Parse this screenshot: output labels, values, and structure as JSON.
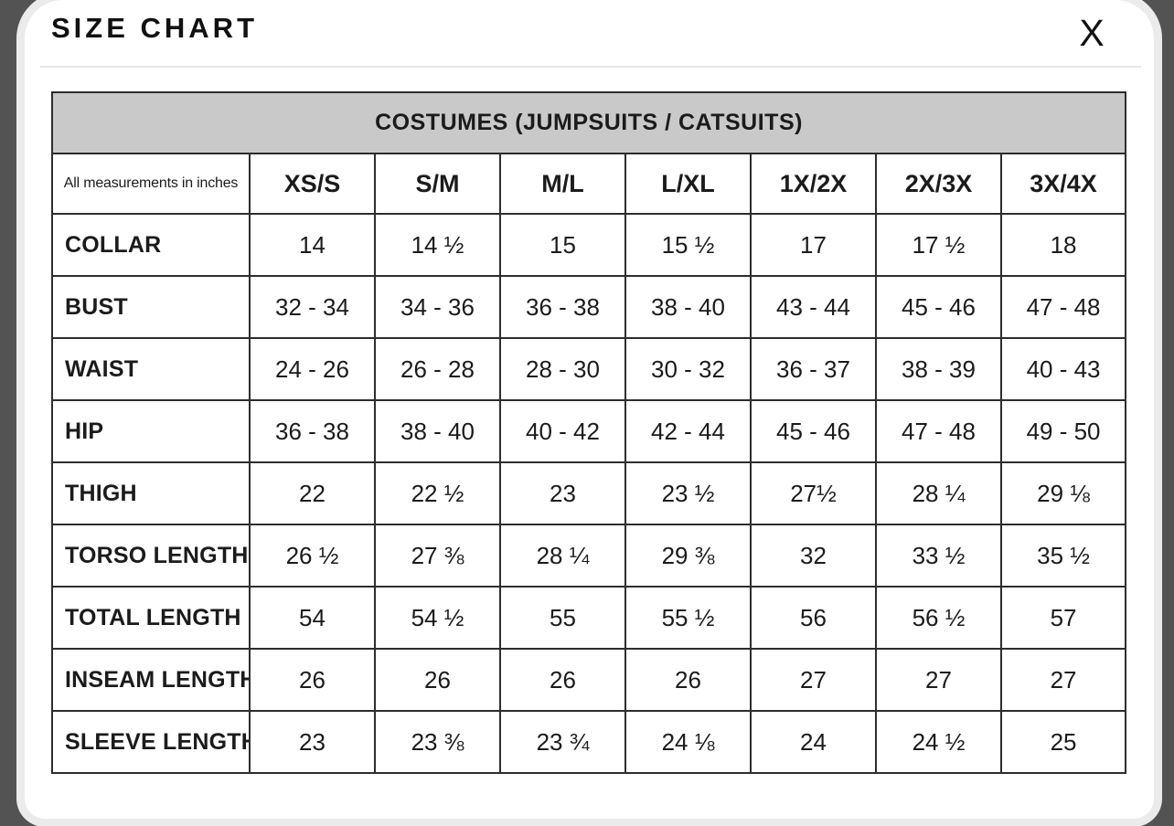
{
  "modal": {
    "title": "SIZE CHART",
    "close_glyph": "X"
  },
  "table": {
    "banner": "COSTUMES (JUMPSUITS / CATSUITS)",
    "corner_note": "All measurements in inches",
    "size_headers": [
      "XS/S",
      "S/M",
      "M/L",
      "L/XL",
      "1X/2X",
      "2X/3X",
      "3X/4X"
    ],
    "rows": [
      {
        "label": "COLLAR",
        "values": [
          "14",
          "14 ½",
          "15",
          "15 ½",
          "17",
          "17 ½",
          "18"
        ]
      },
      {
        "label": "BUST",
        "values": [
          "32 - 34",
          "34 - 36",
          "36 - 38",
          "38 - 40",
          "43 - 44",
          "45 - 46",
          "47 - 48"
        ]
      },
      {
        "label": "WAIST",
        "values": [
          "24 - 26",
          "26 - 28",
          "28 - 30",
          "30 - 32",
          "36 - 37",
          "38 - 39",
          "40 - 43"
        ]
      },
      {
        "label": "HIP",
        "values": [
          "36 - 38",
          "38 - 40",
          "40 - 42",
          "42 - 44",
          "45 - 46",
          "47 - 48",
          "49 - 50"
        ]
      },
      {
        "label": "THIGH",
        "values": [
          "22",
          "22 ½",
          "23",
          "23 ½",
          "27½",
          "28 ¼",
          "29 ⅛"
        ]
      },
      {
        "label": "TORSO LENGTH",
        "values": [
          "26 ½",
          "27 ⅜",
          "28 ¼",
          "29 ⅜",
          "32",
          "33 ½",
          "35 ½"
        ]
      },
      {
        "label": "TOTAL LENGTH",
        "values": [
          "54",
          "54 ½",
          "55",
          "55 ½",
          "56",
          "56 ½",
          "57"
        ]
      },
      {
        "label": "INSEAM LENGTH",
        "values": [
          "26",
          "26",
          "26",
          "26",
          "27",
          "27",
          "27"
        ]
      },
      {
        "label": "SLEEVE LENGTH",
        "values": [
          "23",
          "23 ⅜",
          "23 ¾",
          "24 ⅛",
          "24",
          "24 ½",
          "25"
        ]
      }
    ]
  },
  "colors": {
    "page_background": "#535353",
    "modal_background": "#ffffff",
    "modal_ring": "#ebebeb",
    "banner_background": "#c9c9c9",
    "table_border": "#2d2d2d",
    "text": "#1b1b1b"
  }
}
